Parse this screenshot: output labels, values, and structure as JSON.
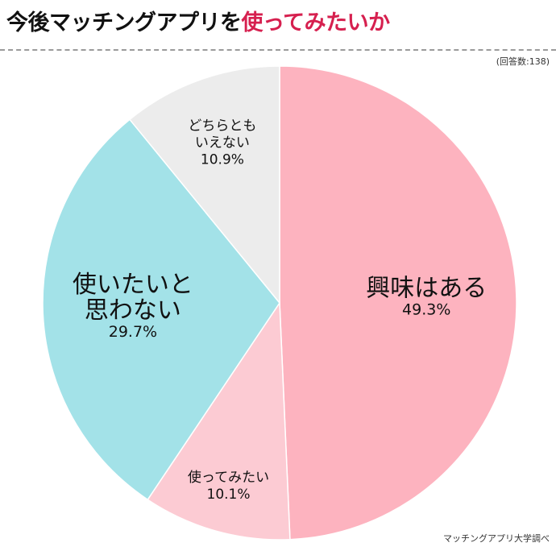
{
  "header": {
    "title_main": "今後マッチングアプリを",
    "title_accent": "使ってみたいか",
    "respondents": "(回答数:138)"
  },
  "footer": {
    "source": "マッチングアプリ大学調べ"
  },
  "colors": {
    "accent": "#d6204f"
  },
  "chart_data": {
    "type": "pie",
    "title": "今後マッチングアプリを使ってみたいか",
    "slices": [
      {
        "lines": [
          "興味はある"
        ],
        "percent_label": "49.3%",
        "value": 49.3,
        "color": "#fdb3bf"
      },
      {
        "lines": [
          "使ってみたい"
        ],
        "percent_label": "10.1%",
        "value": 10.1,
        "color": "#fccbd3"
      },
      {
        "lines": [
          "使いたいと",
          "思わない"
        ],
        "percent_label": "29.7%",
        "value": 29.7,
        "color": "#a3e2e8"
      },
      {
        "lines": [
          "どちらとも",
          "いえない"
        ],
        "percent_label": "10.9%",
        "value": 10.9,
        "color": "#ececec"
      }
    ]
  }
}
